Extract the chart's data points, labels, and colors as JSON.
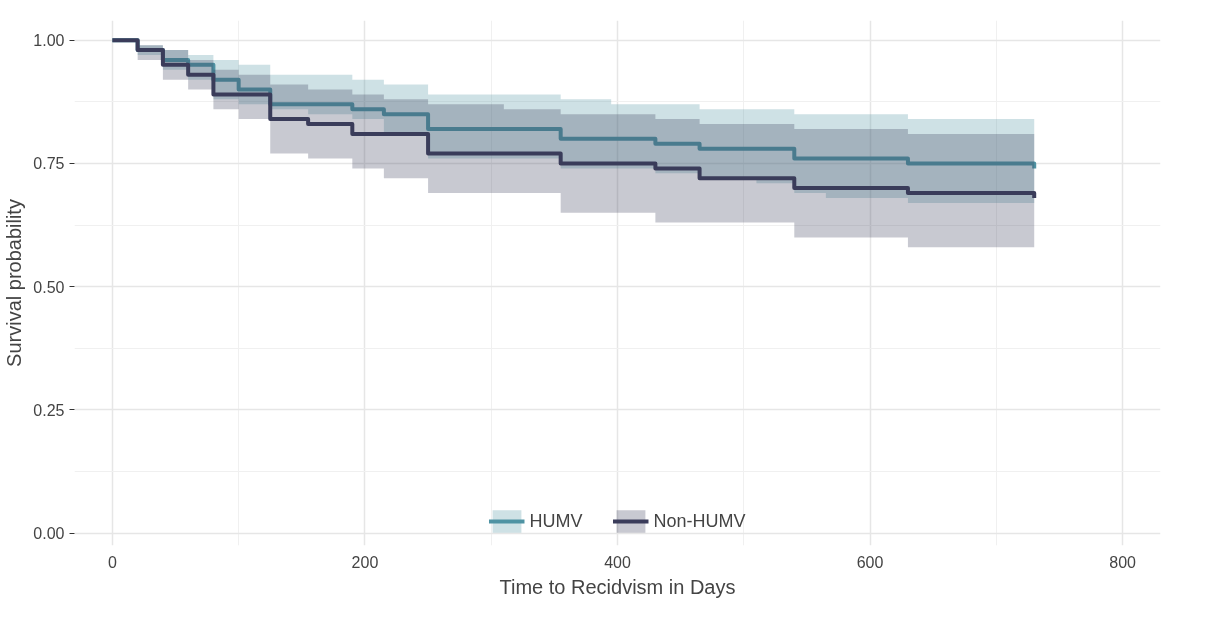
{
  "chart_data": {
    "type": "step",
    "xlabel": "Time to Recidvism in Days",
    "ylabel": "Survival probability",
    "x": [
      0,
      20,
      40,
      60,
      80,
      100,
      125,
      155,
      190,
      215,
      250,
      310,
      355,
      395,
      430,
      465,
      510,
      540,
      565,
      610,
      630,
      715,
      730
    ],
    "xlim": [
      -30,
      830
    ],
    "ylim": [
      -0.025,
      1.04
    ],
    "xticks": [
      0,
      200,
      400,
      600,
      800
    ],
    "yticks": [
      {
        "value": 0,
        "label": "0.00"
      },
      {
        "value": 0.25,
        "label": "0.25"
      },
      {
        "value": 0.5,
        "label": "0.50"
      },
      {
        "value": 0.75,
        "label": "0.75"
      },
      {
        "value": 1,
        "label": "1.00"
      }
    ],
    "series": [
      {
        "name": "HUMV",
        "color": "#4f93a3",
        "values": [
          1.0,
          0.98,
          0.96,
          0.95,
          0.92,
          0.9,
          0.87,
          0.87,
          0.86,
          0.85,
          0.82,
          0.82,
          0.8,
          0.8,
          0.79,
          0.78,
          0.78,
          0.76,
          0.76,
          0.76,
          0.75,
          0.75,
          0.74
        ],
        "upper": [
          1.0,
          0.99,
          0.98,
          0.97,
          0.96,
          0.95,
          0.93,
          0.93,
          0.92,
          0.91,
          0.89,
          0.89,
          0.88,
          0.87,
          0.87,
          0.86,
          0.86,
          0.85,
          0.85,
          0.85,
          0.84,
          0.84,
          0.83
        ],
        "lower": [
          1.0,
          0.97,
          0.94,
          0.92,
          0.88,
          0.87,
          0.86,
          0.85,
          0.84,
          0.81,
          0.76,
          0.76,
          0.74,
          0.74,
          0.73,
          0.72,
          0.71,
          0.69,
          0.68,
          0.68,
          0.67,
          0.67,
          0.66
        ]
      },
      {
        "name": "Non-HUMV",
        "color": "#3a3c5a",
        "values": [
          1.0,
          0.98,
          0.95,
          0.93,
          0.89,
          0.89,
          0.84,
          0.83,
          0.81,
          0.81,
          0.77,
          0.77,
          0.75,
          0.75,
          0.74,
          0.72,
          0.72,
          0.7,
          0.7,
          0.7,
          0.69,
          0.69,
          0.68
        ],
        "upper": [
          1.0,
          0.99,
          0.98,
          0.96,
          0.94,
          0.93,
          0.91,
          0.9,
          0.89,
          0.88,
          0.87,
          0.86,
          0.85,
          0.85,
          0.84,
          0.83,
          0.83,
          0.82,
          0.82,
          0.82,
          0.81,
          0.81,
          0.8
        ],
        "lower": [
          1.0,
          0.96,
          0.92,
          0.9,
          0.86,
          0.84,
          0.77,
          0.76,
          0.74,
          0.72,
          0.69,
          0.69,
          0.65,
          0.65,
          0.63,
          0.63,
          0.63,
          0.6,
          0.6,
          0.6,
          0.58,
          0.58,
          0.58
        ]
      }
    ],
    "grid": true,
    "legend": "bottom"
  }
}
